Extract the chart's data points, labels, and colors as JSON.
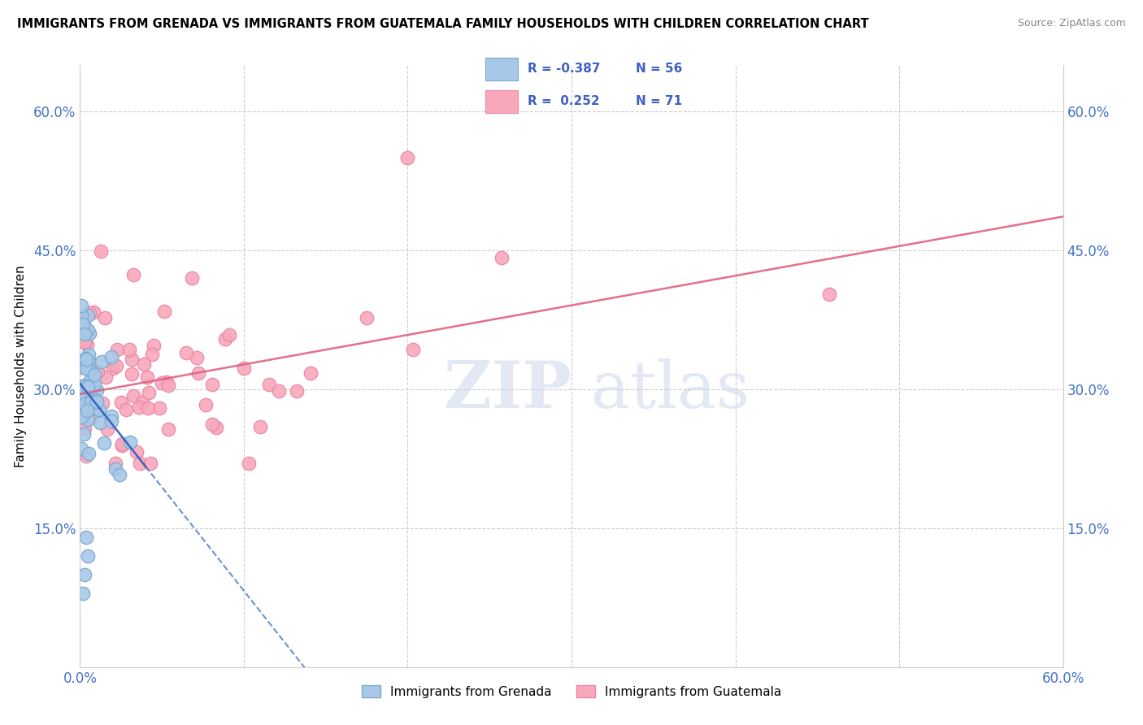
{
  "title": "IMMIGRANTS FROM GRENADA VS IMMIGRANTS FROM GUATEMALA FAMILY HOUSEHOLDS WITH CHILDREN CORRELATION CHART",
  "source": "Source: ZipAtlas.com",
  "ylabel": "Family Households with Children",
  "ytick_vals": [
    0.15,
    0.3,
    0.45,
    0.6
  ],
  "xrange": [
    0.0,
    0.6
  ],
  "yrange": [
    0.0,
    0.65
  ],
  "legend1_r": "-0.387",
  "legend1_n": "56",
  "legend2_r": "0.252",
  "legend2_n": "71",
  "grenada_color": "#a8c8e8",
  "guatemala_color": "#f9a8bc",
  "grenada_line_color": "#3060c0",
  "guatemala_line_color": "#e06080",
  "background_color": "#ffffff"
}
